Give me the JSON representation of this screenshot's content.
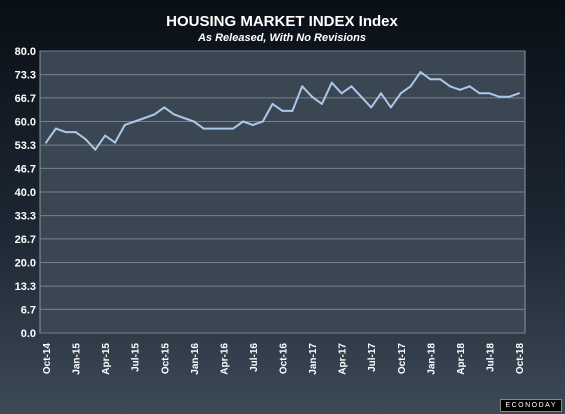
{
  "brand": "ECONODAY",
  "chart_data": {
    "type": "line",
    "title": "HOUSING MARKET INDEX Index",
    "subtitle": "As Released, With No Revisions",
    "xlabel": "",
    "ylabel": "",
    "ylim": [
      0,
      80
    ],
    "yticks": [
      "0.0",
      "6.7",
      "13.3",
      "20.0",
      "26.7",
      "33.3",
      "40.0",
      "46.7",
      "53.3",
      "60.0",
      "66.7",
      "73.3",
      "80.0"
    ],
    "grid": true,
    "series_color": "#a9c8ea",
    "categories": [
      "Oct-14",
      "Nov-14",
      "Dec-14",
      "Jan-15",
      "Feb-15",
      "Mar-15",
      "Apr-15",
      "May-15",
      "Jun-15",
      "Jul-15",
      "Aug-15",
      "Sep-15",
      "Oct-15",
      "Nov-15",
      "Dec-15",
      "Jan-16",
      "Feb-16",
      "Mar-16",
      "Apr-16",
      "May-16",
      "Jun-16",
      "Jul-16",
      "Aug-16",
      "Sep-16",
      "Oct-16",
      "Nov-16",
      "Dec-16",
      "Jan-17",
      "Feb-17",
      "Mar-17",
      "Apr-17",
      "May-17",
      "Jun-17",
      "Jul-17",
      "Aug-17",
      "Sep-17",
      "Oct-17",
      "Nov-17",
      "Dec-17",
      "Jan-18",
      "Feb-18",
      "Mar-18",
      "Apr-18",
      "May-18",
      "Jun-18",
      "Jul-18",
      "Aug-18",
      "Sep-18",
      "Oct-18"
    ],
    "tick_labels": [
      "Oct-14",
      "Jan-15",
      "Apr-15",
      "Jul-15",
      "Oct-15",
      "Jan-16",
      "Apr-16",
      "Jul-16",
      "Oct-16",
      "Jan-17",
      "Apr-17",
      "Jul-17",
      "Oct-17",
      "Jan-18",
      "Apr-18",
      "Jul-18",
      "Oct-18"
    ],
    "values": [
      54,
      58,
      57,
      57,
      55,
      52,
      56,
      54,
      59,
      60,
      61,
      62,
      64,
      62,
      61,
      60,
      58,
      58,
      58,
      58,
      60,
      59,
      60,
      65,
      63,
      63,
      70,
      67,
      65,
      71,
      68,
      70,
      67,
      64,
      68,
      64,
      68,
      70,
      74,
      72,
      72,
      70,
      69,
      70,
      68,
      68,
      67,
      67,
      68
    ]
  }
}
